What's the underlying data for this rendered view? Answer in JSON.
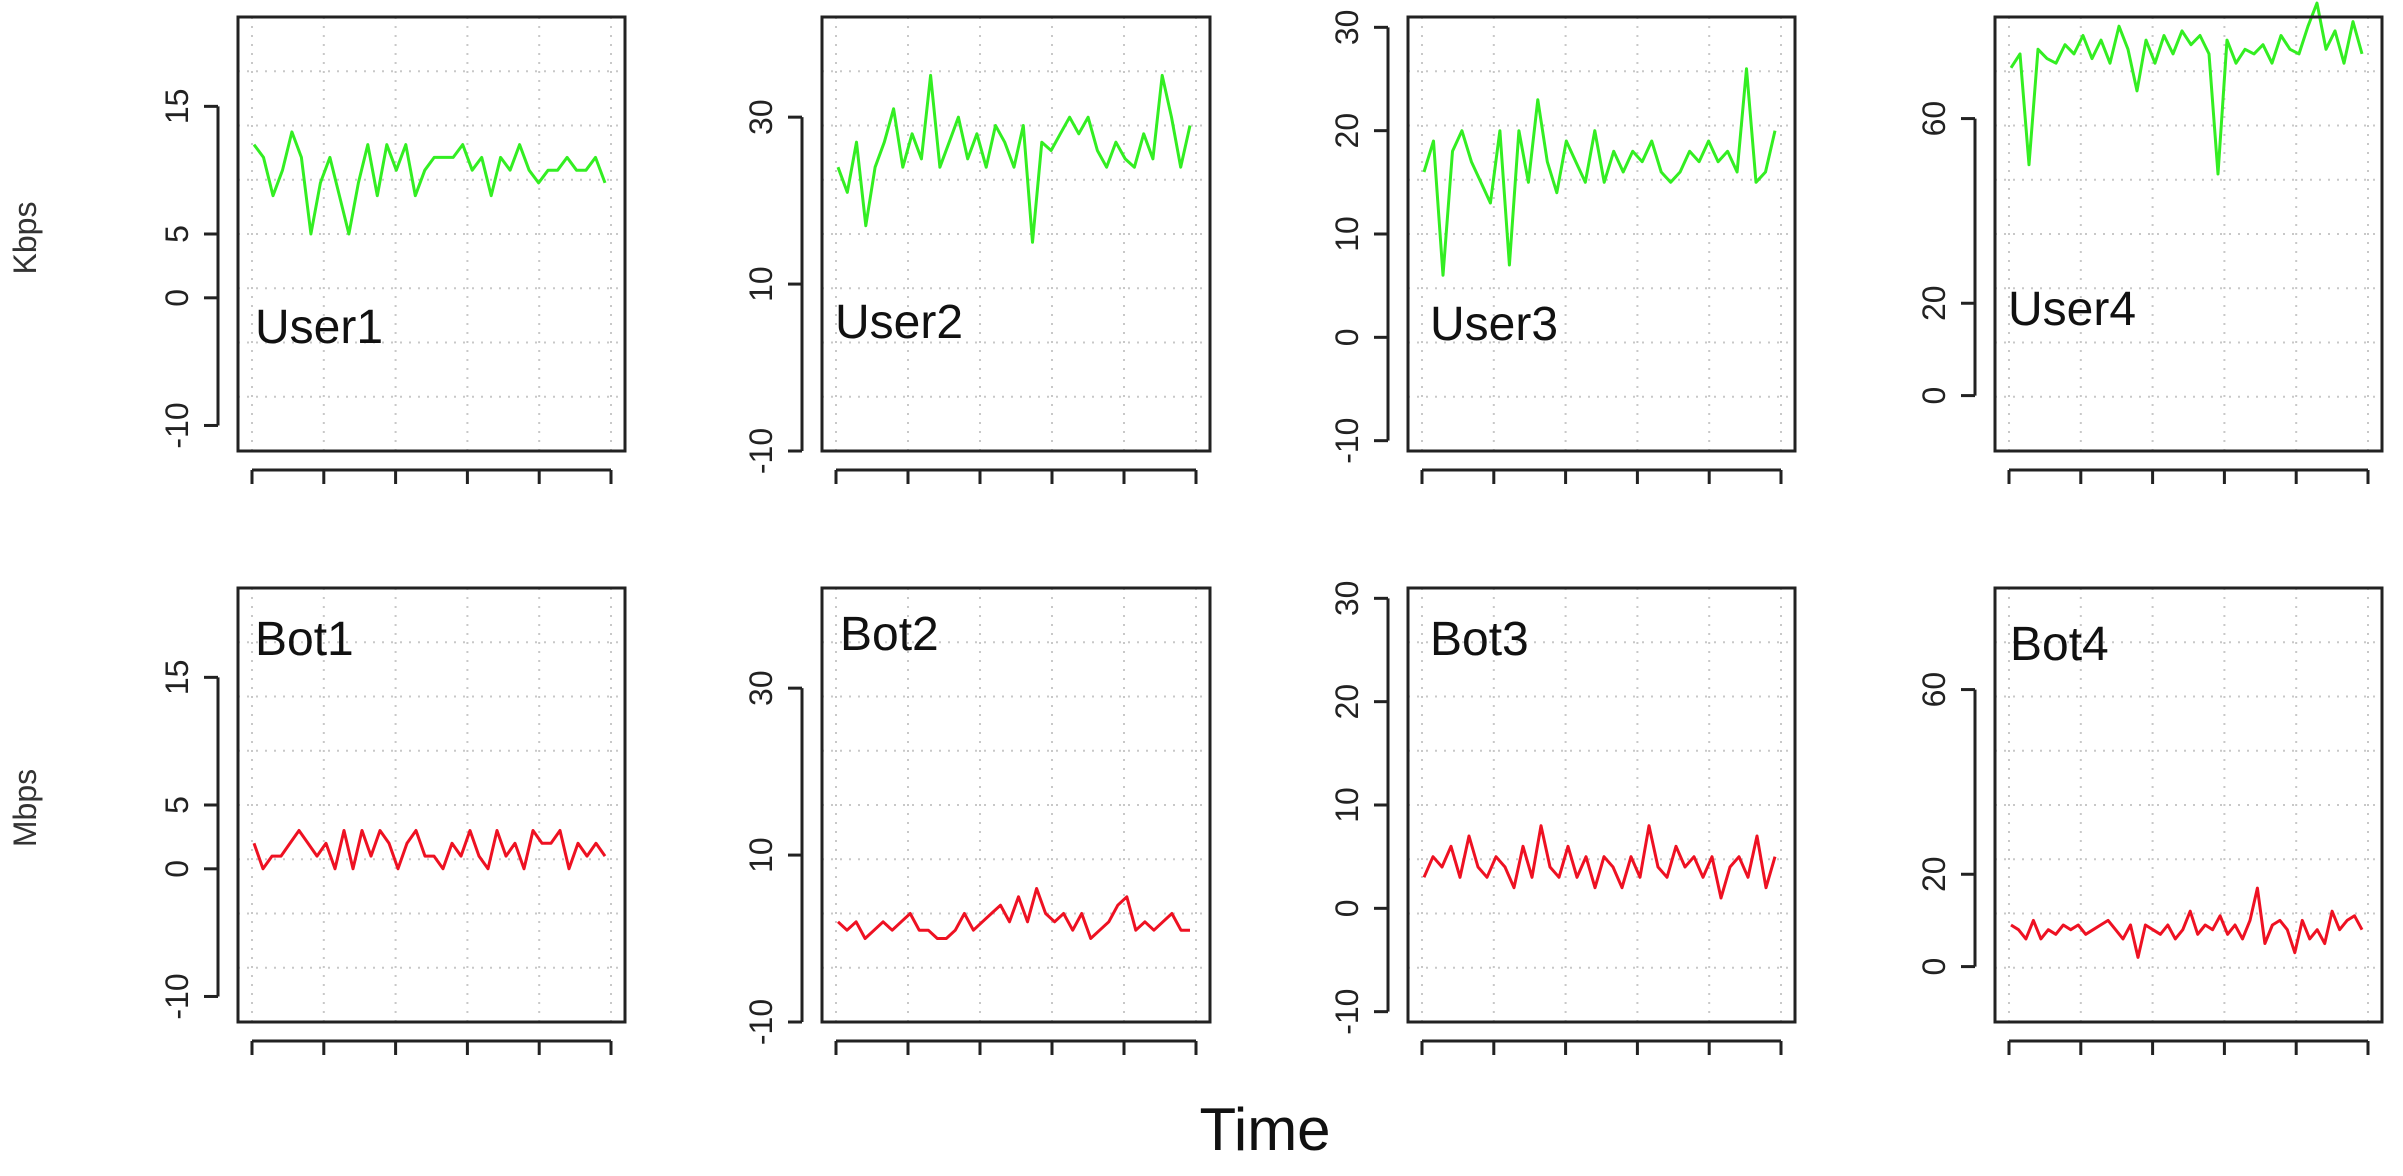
{
  "figure": {
    "top_unit": "Kbps",
    "bottom_unit": "Mbps",
    "xlabel": "Time"
  },
  "chart_data": [
    {
      "type": "line",
      "label": "User1",
      "ylim": [
        -12,
        22
      ],
      "yticks": [
        -10,
        0,
        5,
        15
      ],
      "color": "#33ee22",
      "grid": true,
      "series": [
        {
          "values": [
            12,
            11,
            8,
            10,
            13,
            11,
            5,
            9,
            11,
            8,
            5,
            9,
            12,
            8,
            12,
            10,
            12,
            8,
            10,
            11,
            11,
            11,
            12,
            10,
            11,
            8,
            11,
            10,
            12,
            10,
            9,
            10,
            10,
            11,
            10,
            10,
            11,
            9
          ]
        }
      ]
    },
    {
      "type": "line",
      "label": "User2",
      "ylim": [
        -10,
        42
      ],
      "yticks": [
        -10,
        10,
        30
      ],
      "color": "#33ee22",
      "grid": true,
      "series": [
        {
          "values": [
            24,
            21,
            27,
            17,
            24,
            27,
            31,
            24,
            28,
            25,
            35,
            24,
            27,
            30,
            25,
            28,
            24,
            29,
            27,
            24,
            29,
            15,
            27,
            26,
            28,
            30,
            28,
            30,
            26,
            24,
            27,
            25,
            24,
            28,
            25,
            35,
            30,
            24,
            29
          ]
        }
      ]
    },
    {
      "type": "line",
      "label": "User3",
      "ylim": [
        -11,
        31
      ],
      "yticks": [
        -10,
        0,
        10,
        20,
        30
      ],
      "color": "#33ee22",
      "grid": true,
      "series": [
        {
          "values": [
            16,
            19,
            6,
            18,
            20,
            17,
            15,
            13,
            20,
            7,
            20,
            15,
            23,
            17,
            14,
            19,
            17,
            15,
            20,
            15,
            18,
            16,
            18,
            17,
            19,
            16,
            15,
            16,
            18,
            17,
            19,
            17,
            18,
            16,
            26,
            15,
            16,
            20
          ]
        }
      ]
    },
    {
      "type": "line",
      "label": "User4",
      "ylim": [
        -12,
        82
      ],
      "yticks": [
        0,
        20,
        60
      ],
      "color": "#33ee22",
      "grid": true,
      "series": [
        {
          "values": [
            71,
            74,
            50,
            75,
            73,
            72,
            76,
            74,
            78,
            73,
            77,
            72,
            80,
            75,
            66,
            77,
            72,
            78,
            74,
            79,
            76,
            78,
            74,
            48,
            77,
            72,
            75,
            74,
            76,
            72,
            78,
            75,
            74,
            80,
            85,
            75,
            79,
            72,
            81,
            74
          ]
        }
      ]
    },
    {
      "type": "line",
      "label": "Bot1",
      "ylim": [
        -12,
        22
      ],
      "yticks": [
        -10,
        0,
        5,
        15
      ],
      "color": "#ee1122",
      "grid": true,
      "series": [
        {
          "values": [
            2,
            0,
            1,
            1,
            2,
            3,
            2,
            1,
            2,
            0,
            3,
            0,
            3,
            1,
            3,
            2,
            0,
            2,
            3,
            1,
            1,
            0,
            2,
            1,
            3,
            1,
            0,
            3,
            1,
            2,
            0,
            3,
            2,
            2,
            3,
            0,
            2,
            1,
            2,
            1
          ]
        }
      ]
    },
    {
      "type": "line",
      "label": "Bot2",
      "ylim": [
        -10,
        42
      ],
      "yticks": [
        -10,
        10,
        30
      ],
      "color": "#ee1122",
      "grid": true,
      "series": [
        {
          "values": [
            2,
            1,
            2,
            0,
            1,
            2,
            1,
            2,
            3,
            1,
            1,
            0,
            0,
            1,
            3,
            1,
            2,
            3,
            4,
            2,
            5,
            2,
            6,
            3,
            2,
            3,
            1,
            3,
            0,
            1,
            2,
            4,
            5,
            1,
            2,
            1,
            2,
            3,
            1,
            1
          ]
        }
      ]
    },
    {
      "type": "line",
      "label": "Bot3",
      "ylim": [
        -11,
        31
      ],
      "yticks": [
        -10,
        0,
        10,
        20,
        30
      ],
      "color": "#ee1122",
      "grid": true,
      "series": [
        {
          "values": [
            3,
            5,
            4,
            6,
            3,
            7,
            4,
            3,
            5,
            4,
            2,
            6,
            3,
            8,
            4,
            3,
            6,
            3,
            5,
            2,
            5,
            4,
            2,
            5,
            3,
            8,
            4,
            3,
            6,
            4,
            5,
            3,
            5,
            1,
            4,
            5,
            3,
            7,
            2,
            5
          ]
        }
      ]
    },
    {
      "type": "line",
      "label": "Bot4",
      "ylim": [
        -12,
        82
      ],
      "yticks": [
        0,
        20,
        60
      ],
      "color": "#ee1122",
      "grid": true,
      "series": [
        {
          "values": [
            9,
            8,
            6,
            10,
            6,
            8,
            7,
            9,
            8,
            9,
            7,
            8,
            9,
            10,
            8,
            6,
            9,
            2,
            9,
            8,
            7,
            9,
            6,
            8,
            12,
            7,
            9,
            8,
            11,
            7,
            9,
            6,
            10,
            17,
            5,
            9,
            10,
            8,
            3,
            10,
            6,
            8,
            5,
            12,
            8,
            10,
            11,
            8
          ]
        }
      ]
    }
  ]
}
